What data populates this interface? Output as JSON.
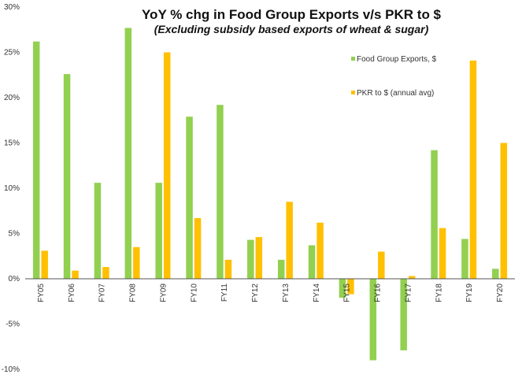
{
  "chart_data": {
    "type": "bar",
    "title": "YoY % chg in Food Group Exports v/s PKR to $",
    "subtitle": "(Excluding subsidy based exports of wheat & sugar)",
    "xlabel": "",
    "ylabel": "",
    "ylim": [
      -10,
      30
    ],
    "yticks": [
      30,
      25,
      20,
      15,
      10,
      5,
      0,
      -5,
      -10
    ],
    "ytick_labels": [
      "30%",
      "25%",
      "20%",
      "15%",
      "10%",
      "5%",
      "0%",
      "-5%",
      "-10%"
    ],
    "grid": false,
    "legend_position": "top-right",
    "categories": [
      "FY05",
      "FY06",
      "FY07",
      "FY08",
      "FY09",
      "FY10",
      "FY11",
      "FY12",
      "FY13",
      "FY14",
      "FY15",
      "FY16",
      "FY17",
      "FY18",
      "FY19",
      "FY20"
    ],
    "series": [
      {
        "name": "Food Group Exports, $",
        "color": "#92D050",
        "values": [
          26.2,
          22.6,
          10.6,
          27.7,
          10.6,
          17.9,
          19.2,
          4.3,
          2.1,
          3.7,
          -2.1,
          -9.0,
          -7.9,
          14.2,
          4.4,
          1.1
        ]
      },
      {
        "name": "PKR to $ (annual avg)",
        "color": "#FFC000",
        "values": [
          3.1,
          0.9,
          1.3,
          3.5,
          25.0,
          6.7,
          2.1,
          4.6,
          8.5,
          6.2,
          -1.7,
          3.0,
          0.3,
          5.6,
          24.1,
          15.0
        ]
      }
    ]
  }
}
